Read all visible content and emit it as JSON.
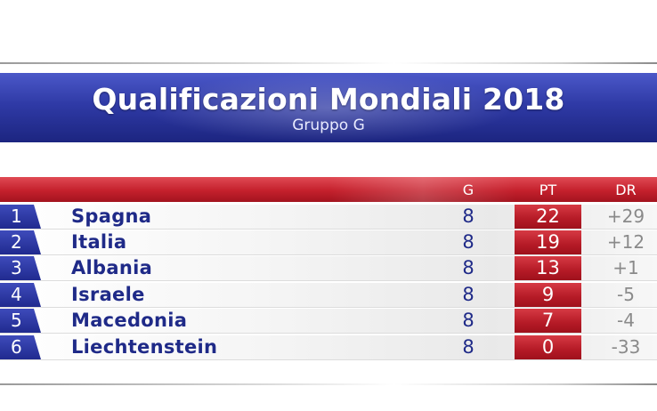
{
  "title": "Qualificazioni Mondiali 2018",
  "subtitle": "Gruppo G",
  "columns": {
    "played": "G",
    "points": "PT",
    "diff": "DR"
  },
  "standings": [
    {
      "pos": "1",
      "team": "Spagna",
      "played": "8",
      "points": "22",
      "diff": "+29"
    },
    {
      "pos": "2",
      "team": "Italia",
      "played": "8",
      "points": "19",
      "diff": "+12"
    },
    {
      "pos": "3",
      "team": "Albania",
      "played": "8",
      "points": "13",
      "diff": "+1"
    },
    {
      "pos": "4",
      "team": "Israele",
      "played": "8",
      "points": "9",
      "diff": "-5"
    },
    {
      "pos": "5",
      "team": "Macedonia",
      "played": "8",
      "points": "7",
      "diff": "-4"
    },
    {
      "pos": "6",
      "team": "Liechtenstein",
      "played": "8",
      "points": "0",
      "diff": "-33"
    }
  ],
  "colors": {
    "blue": "#2f3aa6",
    "red": "#c4202c",
    "team_text": "#1f2a88"
  }
}
